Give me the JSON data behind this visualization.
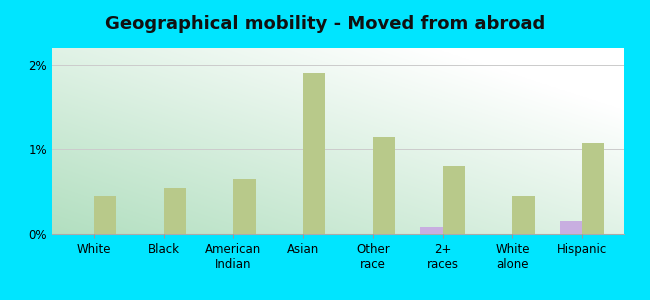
{
  "title": "Geographical mobility - Moved from abroad",
  "categories": [
    "White",
    "Black",
    "American\nIndian",
    "Asian",
    "Other\nrace",
    "2+\nraces",
    "White\nalone",
    "Hispanic"
  ],
  "melville_values": [
    0.0,
    0.0,
    0.0,
    0.0,
    0.0,
    0.08,
    0.0,
    0.15
  ],
  "newyork_values": [
    0.45,
    0.55,
    0.65,
    1.9,
    1.15,
    0.8,
    0.45,
    1.08
  ],
  "melville_color": "#c8aee0",
  "newyork_color": "#b8c98a",
  "background_color": "#00e5ff",
  "grad_color_green": "#b2dfc0",
  "grad_color_white": "#ffffff",
  "yticks": [
    0,
    1,
    2
  ],
  "ylim": [
    0,
    2.2
  ],
  "bar_width": 0.32,
  "title_fontsize": 13,
  "tick_fontsize": 8.5
}
